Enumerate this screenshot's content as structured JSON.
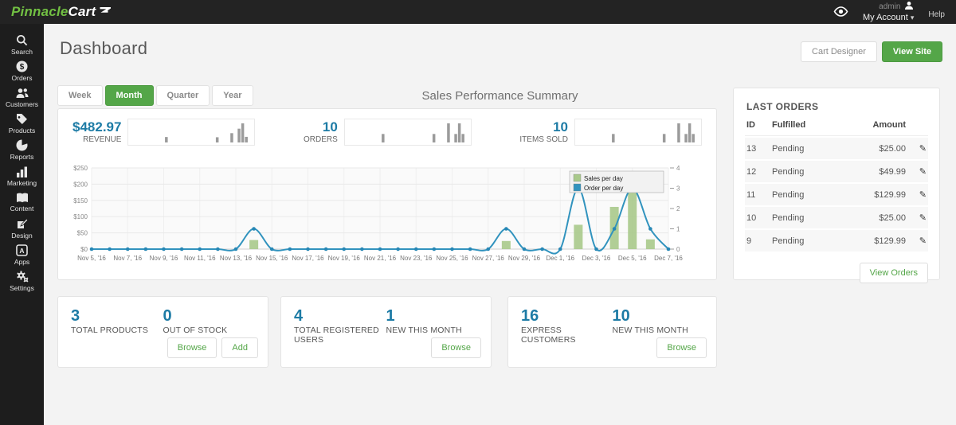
{
  "topbar": {
    "logo_primary": "Pinnacle",
    "logo_secondary": "Cart",
    "admin_label": "admin",
    "my_account_label": "My Account",
    "caret": "▾",
    "help_label": "Help"
  },
  "sidebar": {
    "items": [
      {
        "label": "Search"
      },
      {
        "label": "Orders"
      },
      {
        "label": "Customers"
      },
      {
        "label": "Products"
      },
      {
        "label": "Reports"
      },
      {
        "label": "Marketing"
      },
      {
        "label": "Content"
      },
      {
        "label": "Design"
      },
      {
        "label": "Apps"
      },
      {
        "label": "Settings"
      }
    ]
  },
  "header": {
    "title": "Dashboard",
    "cart_designer_label": "Cart Designer",
    "view_site_label": "View Site"
  },
  "period_tabs": [
    {
      "label": "Week"
    },
    {
      "label": "Month"
    },
    {
      "label": "Quarter"
    },
    {
      "label": "Year"
    }
  ],
  "summary": {
    "title": "Sales Performance Summary",
    "stats": [
      {
        "value": "$482.97",
        "label": "REVENUE"
      },
      {
        "value": "10",
        "label": "ORDERS"
      },
      {
        "value": "10",
        "label": "ITEMS SOLD"
      }
    ]
  },
  "chart_data": [
    {
      "id": "main",
      "type": "line+bar",
      "x": [
        "Nov 5, '16",
        "Nov 6, '16",
        "Nov 7, '16",
        "Nov 8, '16",
        "Nov 9, '16",
        "Nov 10, '16",
        "Nov 11, '16",
        "Nov 12, '16",
        "Nov 13, '16",
        "Nov 14, '16",
        "Nov 15, '16",
        "Nov 16, '16",
        "Nov 17, '16",
        "Nov 18, '16",
        "Nov 19, '16",
        "Nov 20, '16",
        "Nov 21, '16",
        "Nov 22, '16",
        "Nov 23, '16",
        "Nov 24, '16",
        "Nov 25, '16",
        "Nov 26, '16",
        "Nov 27, '16",
        "Nov 28, '16",
        "Nov 29, '16",
        "Nov 30, '16",
        "Dec 1, '16",
        "Dec 2, '16",
        "Dec 3, '16",
        "Dec 4, '16",
        "Dec 5, '16",
        "Dec 6, '16",
        "Dec 7, '16"
      ],
      "tick_every": 2,
      "grid": true,
      "legend_position": "top-right",
      "series": [
        {
          "name": "Sales per day",
          "type": "bar",
          "axis": "left",
          "color": "#a9c98b",
          "values": [
            0,
            0,
            0,
            0,
            0,
            0,
            0,
            0,
            0,
            27.99,
            0,
            0,
            0,
            0,
            0,
            0,
            0,
            0,
            0,
            0,
            0,
            0,
            0,
            25,
            0,
            0,
            0,
            74.99,
            0,
            129.99,
            195,
            30,
            0
          ]
        },
        {
          "name": "Order per day",
          "type": "line",
          "axis": "right",
          "color": "#3193be",
          "values": [
            0,
            0,
            0,
            0,
            0,
            0,
            0,
            0,
            0,
            1,
            0,
            0,
            0,
            0,
            0,
            0,
            0,
            0,
            0,
            0,
            0,
            0,
            0,
            1,
            0,
            0,
            0,
            3,
            0,
            1,
            3,
            1,
            0
          ]
        }
      ],
      "left_axis": {
        "min": 0,
        "max": 250,
        "tick_step": 50,
        "tick_labels": [
          "$0",
          "$50",
          "$100",
          "$150",
          "$200",
          "$250"
        ]
      },
      "right_axis": {
        "min": 0,
        "max": 4,
        "tick_step": 1,
        "tick_labels": [
          "0",
          "1",
          "2",
          "3",
          "4"
        ]
      }
    },
    {
      "id": "spark_revenue",
      "type": "bar",
      "color": "#9b9b9b",
      "values": [
        0,
        0,
        0,
        0,
        0,
        0,
        0,
        0,
        0,
        27.99,
        0,
        0,
        0,
        0,
        0,
        0,
        0,
        0,
        0,
        0,
        0,
        0,
        0,
        25,
        0,
        0,
        0,
        74.99,
        0,
        129.99,
        195,
        30,
        0
      ]
    },
    {
      "id": "spark_orders",
      "type": "bar",
      "color": "#9b9b9b",
      "values": [
        0,
        0,
        0,
        0,
        0,
        0,
        0,
        0,
        0,
        1,
        0,
        0,
        0,
        0,
        0,
        0,
        0,
        0,
        0,
        0,
        0,
        0,
        0,
        1,
        0,
        0,
        0,
        3,
        0,
        1,
        3,
        1,
        0
      ]
    },
    {
      "id": "spark_items",
      "type": "bar",
      "color": "#9b9b9b",
      "values": [
        0,
        0,
        0,
        0,
        0,
        0,
        0,
        0,
        0,
        1,
        0,
        0,
        0,
        0,
        0,
        0,
        0,
        0,
        0,
        0,
        0,
        0,
        0,
        1,
        0,
        0,
        0,
        3,
        0,
        1,
        3,
        1,
        0
      ]
    }
  ],
  "last_orders": {
    "title": "LAST ORDERS",
    "columns": {
      "id": "ID",
      "fulfilled": "Fulfilled",
      "amount": "Amount"
    },
    "rows": [
      {
        "id": "13",
        "fulfilled": "Pending",
        "amount": "$25.00"
      },
      {
        "id": "12",
        "fulfilled": "Pending",
        "amount": "$49.99"
      },
      {
        "id": "11",
        "fulfilled": "Pending",
        "amount": "$129.99"
      },
      {
        "id": "10",
        "fulfilled": "Pending",
        "amount": "$25.00"
      },
      {
        "id": "9",
        "fulfilled": "Pending",
        "amount": "$129.99"
      }
    ],
    "edit_icon": "✎",
    "view_orders_label": "View Orders"
  },
  "cards": [
    {
      "stats": [
        {
          "value": "3",
          "label": "TOTAL PRODUCTS"
        },
        {
          "value": "0",
          "label": "OUT OF STOCK"
        }
      ],
      "buttons": {
        "browse": "Browse",
        "add": "Add"
      }
    },
    {
      "stats": [
        {
          "value": "4",
          "label": "TOTAL REGISTERED USERS"
        },
        {
          "value": "1",
          "label": "NEW THIS MONTH"
        }
      ],
      "buttons": {
        "browse": "Browse"
      }
    },
    {
      "stats": [
        {
          "value": "16",
          "label": "EXPRESS CUSTOMERS"
        },
        {
          "value": "10",
          "label": "NEW THIS MONTH"
        }
      ],
      "buttons": {
        "browse": "Browse"
      }
    }
  ],
  "colors": {
    "accent_green": "#54a648",
    "stat_blue": "#1d7ba5",
    "line_blue": "#3193be",
    "bar_green": "#a9c98b",
    "topbar_bg": "#232323",
    "sidebar_bg": "#1d1d1d",
    "logo_green": "#72c043"
  }
}
